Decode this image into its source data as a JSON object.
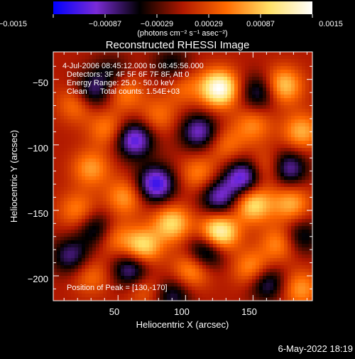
{
  "colorbar": {
    "tick_labels": [
      "−0.0015",
      "−0.00087",
      "−0.00029",
      "0.00029",
      "0.00087",
      "0.0015"
    ],
    "unit_label": "(photons cm⁻² s⁻¹ asec⁻²)",
    "colors": [
      "#0000ff",
      "#7a2bd6",
      "#000000",
      "#b01800",
      "#ff6a00",
      "#ffe066",
      "#ffffff"
    ]
  },
  "info": {
    "line1": "4-Jul-2006 08:45:12.000 to 08:45:56.000",
    "line2": "Detectors: 3F 4F 5F 6F 7F 8F, Att 0",
    "line3": "Energy Range: 25.0 - 50.0 keV",
    "line4": "Clean      Total counts: 1.54E+03",
    "peak": "Position of Peak = [130,-170]"
  },
  "footer": {
    "date": "6-May-2022 18:19"
  },
  "chart_data": {
    "type": "heatmap",
    "title": "Reconstructed RHESSI Image",
    "xlabel": "Heliocentric X (arcsec)",
    "ylabel": "Heliocentric Y (arcsec)",
    "xlim": [
      2,
      194
    ],
    "ylim": [
      -219,
      -29
    ],
    "x_ticks": [
      50,
      100,
      150
    ],
    "y_ticks": [
      -50,
      -100,
      -150,
      -200
    ],
    "x_tick_labels": [
      "50",
      "100",
      "150"
    ],
    "y_tick_labels": [
      "−50",
      "−100",
      "−150",
      "−200"
    ],
    "color_range": [
      -0.0015,
      0.0015
    ],
    "peak_position": [
      130,
      -170
    ],
    "blobs": [
      {
        "x": 125,
        "y": -57,
        "v": 0.0015
      },
      {
        "x": 172,
        "y": -55,
        "v": 0.001
      },
      {
        "x": 20,
        "y": -68,
        "v": 0.0007
      },
      {
        "x": 55,
        "y": -60,
        "v": 0.0006
      },
      {
        "x": 98,
        "y": -55,
        "v": 0.0005
      },
      {
        "x": 42,
        "y": -88,
        "v": 0.0006
      },
      {
        "x": 80,
        "y": -78,
        "v": 0.0005
      },
      {
        "x": 150,
        "y": -85,
        "v": 0.0006
      },
      {
        "x": 186,
        "y": -90,
        "v": 0.0008
      },
      {
        "x": 130,
        "y": -100,
        "v": 0.0005
      },
      {
        "x": 30,
        "y": -118,
        "v": 0.0007
      },
      {
        "x": 110,
        "y": -122,
        "v": 0.0006
      },
      {
        "x": 162,
        "y": -118,
        "v": 0.0007
      },
      {
        "x": 55,
        "y": -140,
        "v": 0.0007
      },
      {
        "x": 150,
        "y": -145,
        "v": 0.0011
      },
      {
        "x": 178,
        "y": -145,
        "v": 0.0008
      },
      {
        "x": 20,
        "y": -150,
        "v": 0.0006
      },
      {
        "x": 90,
        "y": -160,
        "v": 0.001
      },
      {
        "x": 125,
        "y": -167,
        "v": 0.0014
      },
      {
        "x": 45,
        "y": -170,
        "v": 0.0007
      },
      {
        "x": 68,
        "y": -178,
        "v": 0.0011
      },
      {
        "x": 170,
        "y": -175,
        "v": 0.0007
      },
      {
        "x": 150,
        "y": -195,
        "v": 0.0008
      },
      {
        "x": 105,
        "y": -195,
        "v": 0.0008
      },
      {
        "x": 30,
        "y": -200,
        "v": 0.0005
      },
      {
        "x": 185,
        "y": -210,
        "v": 0.0007
      },
      {
        "x": 70,
        "y": -210,
        "v": 0.0005
      },
      {
        "x": 30,
        "y": -60,
        "v": -0.0009
      },
      {
        "x": 62,
        "y": -96,
        "v": -0.0012
      },
      {
        "x": 110,
        "y": -90,
        "v": -0.001
      },
      {
        "x": 155,
        "y": -60,
        "v": -0.0008
      },
      {
        "x": 175,
        "y": -118,
        "v": -0.0011
      },
      {
        "x": 78,
        "y": -130,
        "v": -0.0013
      },
      {
        "x": 125,
        "y": -140,
        "v": -0.001
      },
      {
        "x": 143,
        "y": -125,
        "v": -0.0012
      },
      {
        "x": 35,
        "y": -165,
        "v": -0.0009
      },
      {
        "x": 115,
        "y": -182,
        "v": -0.001
      },
      {
        "x": 60,
        "y": -195,
        "v": -0.001
      },
      {
        "x": 160,
        "y": -205,
        "v": -0.0009
      },
      {
        "x": 15,
        "y": -185,
        "v": -0.0008
      },
      {
        "x": 90,
        "y": -215,
        "v": -0.0007
      },
      {
        "x": 185,
        "y": -170,
        "v": -0.0007
      },
      {
        "x": 90,
        "y": -40,
        "v": -0.0006
      },
      {
        "x": 45,
        "y": -45,
        "v": -0.0005
      }
    ]
  }
}
